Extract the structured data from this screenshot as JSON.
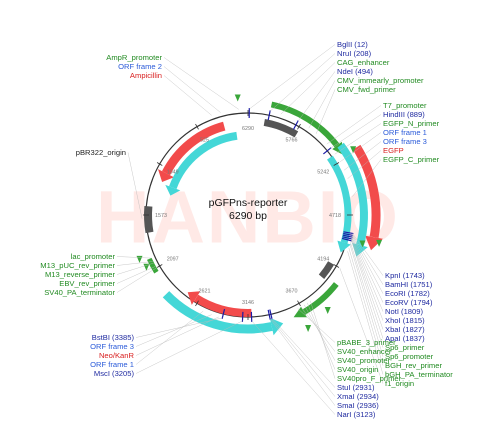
{
  "plasmid": {
    "name": "pGFPns-reporter",
    "size": "6290 bp"
  },
  "watermark": "HANBIO",
  "colors": {
    "green": "#3aa63a",
    "cyan": "#44d7d7",
    "red": "#f24b4b",
    "gray": "#555555",
    "blue": "#1a1aa6",
    "site_label": "#1f2aa0",
    "feature_label": "#228b22",
    "orf_label": "#2b5bd9",
    "resistance_label": "#d92020",
    "origin_label": "#222222"
  },
  "ticks": [
    "6290",
    "5766",
    "5242",
    "4718",
    "4194",
    "3670",
    "3146",
    "2621",
    "2097",
    "1573",
    "1049",
    "525"
  ],
  "labels": [
    {
      "id": "ampr-promoter",
      "text": "AmpR_promoter",
      "kind": "feature"
    },
    {
      "id": "orf-frame-2",
      "text": "ORF frame 2",
      "kind": "orf"
    },
    {
      "id": "ampicillin",
      "text": "Ampicillin",
      "kind": "resistance"
    },
    {
      "id": "bglii",
      "text": "BglII (12)",
      "kind": "site"
    },
    {
      "id": "nrui",
      "text": "NruI (208)",
      "kind": "site"
    },
    {
      "id": "cag-enhancer",
      "text": "CAG_enhancer",
      "kind": "feature"
    },
    {
      "id": "ndei",
      "text": "NdeI (494)",
      "kind": "site"
    },
    {
      "id": "cmv-immearly-promoter",
      "text": "CMV_immearly_promoter",
      "kind": "feature"
    },
    {
      "id": "cmv-fwd-primer",
      "text": "CMV_fwd_primer",
      "kind": "feature"
    },
    {
      "id": "t7-promoter",
      "text": "T7_promoter",
      "kind": "feature"
    },
    {
      "id": "hindiii",
      "text": "HindIII (889)",
      "kind": "site"
    },
    {
      "id": "egfp-n-primer",
      "text": "EGFP_N_primer",
      "kind": "feature"
    },
    {
      "id": "orf-frame-1",
      "text": "ORF frame 1",
      "kind": "orf"
    },
    {
      "id": "orf-frame-3",
      "text": "ORF frame 3",
      "kind": "orf"
    },
    {
      "id": "egfp",
      "text": "EGFP",
      "kind": "resistance"
    },
    {
      "id": "egfp-c-primer",
      "text": "EGFP_C_primer",
      "kind": "feature"
    },
    {
      "id": "pbr322-origin",
      "text": "pBR322_origin",
      "kind": "origin"
    },
    {
      "id": "kpni",
      "text": "KpnI (1743)",
      "kind": "site"
    },
    {
      "id": "bamhi",
      "text": "BamHI (1751)",
      "kind": "site"
    },
    {
      "id": "ecori",
      "text": "EcoRI (1782)",
      "kind": "site"
    },
    {
      "id": "ecorv",
      "text": "EcoRV (1794)",
      "kind": "site"
    },
    {
      "id": "noti",
      "text": "NotI (1809)",
      "kind": "site"
    },
    {
      "id": "xhoi",
      "text": "XhoI (1815)",
      "kind": "site"
    },
    {
      "id": "xbai",
      "text": "XbaI (1827)",
      "kind": "site"
    },
    {
      "id": "apai",
      "text": "ApaI (1837)",
      "kind": "site"
    },
    {
      "id": "sp6-primer",
      "text": "Sp6_primer",
      "kind": "feature"
    },
    {
      "id": "sp6-promoter",
      "text": "Sp6_promoter",
      "kind": "feature"
    },
    {
      "id": "bgh-rev-primer",
      "text": "BGH_rev_primer",
      "kind": "feature"
    },
    {
      "id": "bgh-pa-terminator",
      "text": "bGH_PA_terminator",
      "kind": "feature"
    },
    {
      "id": "f1-origin",
      "text": "f1_origin",
      "kind": "feature"
    },
    {
      "id": "lac-promoter",
      "text": "lac_promoter",
      "kind": "feature"
    },
    {
      "id": "m13-puc-rev-primer",
      "text": "M13_pUC_rev_primer",
      "kind": "feature"
    },
    {
      "id": "m13-reverse-primer",
      "text": "M13_reverse_primer",
      "kind": "feature"
    },
    {
      "id": "ebv-rev-primer",
      "text": "EBV_rev_primer",
      "kind": "feature"
    },
    {
      "id": "sv40-pa-terminator",
      "text": "SV40_PA_terminator",
      "kind": "feature"
    },
    {
      "id": "bstbi",
      "text": "BstBI (3385)",
      "kind": "site"
    },
    {
      "id": "orf-frame-3b",
      "text": "ORF frame 3",
      "kind": "orf"
    },
    {
      "id": "neo-kan",
      "text": "Neo/KanR",
      "kind": "resistance"
    },
    {
      "id": "orf-frame-1b",
      "text": "ORF frame 1",
      "kind": "orf"
    },
    {
      "id": "msci",
      "text": "MscI (3205)",
      "kind": "site"
    },
    {
      "id": "pbabe-3-primer",
      "text": "pBABE_3_primer",
      "kind": "feature"
    },
    {
      "id": "sv40-enhancer",
      "text": "SV40_enhancer",
      "kind": "feature"
    },
    {
      "id": "sv40-promoter",
      "text": "SV40_promoter",
      "kind": "feature"
    },
    {
      "id": "sv40-origin",
      "text": "SV40_origin",
      "kind": "feature"
    },
    {
      "id": "sv40pro-f-primer",
      "text": "SV40pro_F_primer",
      "kind": "feature"
    },
    {
      "id": "stui",
      "text": "StuI (2931)",
      "kind": "site"
    },
    {
      "id": "xmai",
      "text": "XmaI (2934)",
      "kind": "site"
    },
    {
      "id": "smai",
      "text": "SmaI (2936)",
      "kind": "site"
    },
    {
      "id": "nari",
      "text": "NarI (3123)",
      "kind": "site"
    }
  ]
}
